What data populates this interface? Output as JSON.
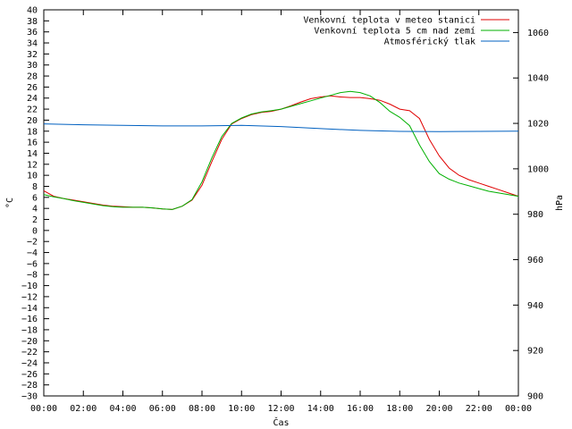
{
  "chart_data": {
    "type": "line",
    "title": "",
    "xlabel": "Čas",
    "ylabel": "°C",
    "y2label": "hPa",
    "xlim": [
      0,
      24
    ],
    "ylim": [
      -30,
      40
    ],
    "y2lim": [
      900,
      1070
    ],
    "x_ticks": [
      "00:00",
      "02:00",
      "04:00",
      "06:00",
      "08:00",
      "10:00",
      "12:00",
      "14:00",
      "16:00",
      "18:00",
      "20:00",
      "22:00",
      "00:00"
    ],
    "y_ticks": [
      40,
      38,
      36,
      34,
      32,
      30,
      28,
      26,
      24,
      22,
      20,
      18,
      16,
      14,
      12,
      10,
      8,
      6,
      4,
      2,
      0,
      -2,
      -4,
      -6,
      -8,
      -10,
      -12,
      -14,
      -16,
      -18,
      -20,
      -22,
      -24,
      -26,
      -28,
      -30
    ],
    "y_tick_labels": [
      "40",
      "38",
      "36",
      "34",
      "32",
      "30",
      "28",
      "26",
      "24",
      "22",
      "20",
      "18",
      "16",
      "14",
      "12",
      "10",
      "8",
      "6",
      "4",
      "2",
      "0",
      "−2",
      "−4",
      "−6",
      "−8",
      "−10",
      "−12",
      "−14",
      "−16",
      "−18",
      "−20",
      "−22",
      "−24",
      "−26",
      "−28",
      "−30"
    ],
    "y2_ticks": [
      1060,
      1040,
      1020,
      1000,
      980,
      960,
      940,
      920,
      900
    ],
    "grid": false,
    "legend_position": "top-right",
    "series": [
      {
        "name": "Venkovní teplota v meteo stanici",
        "color": "#e00000",
        "axis": "left",
        "x": [
          0,
          0.5,
          1,
          1.5,
          2,
          2.5,
          3,
          3.5,
          4,
          4.5,
          5,
          5.5,
          6,
          6.5,
          7,
          7.5,
          8,
          8.5,
          9,
          9.5,
          10,
          10.5,
          11,
          11.5,
          12,
          12.5,
          13,
          13.5,
          14,
          14.5,
          15,
          15.5,
          16,
          16.5,
          17,
          17.5,
          18,
          18.5,
          19,
          19.5,
          20,
          20.5,
          21,
          21.5,
          22,
          22.5,
          23,
          23.5,
          24
        ],
        "values": [
          7.2,
          6.2,
          5.8,
          5.5,
          5.2,
          4.9,
          4.6,
          4.4,
          4.3,
          4.2,
          4.2,
          4.1,
          3.9,
          3.8,
          4.4,
          5.5,
          8.2,
          12.5,
          16.5,
          19.3,
          20.3,
          21.0,
          21.4,
          21.6,
          22.0,
          22.6,
          23.3,
          23.9,
          24.2,
          24.4,
          24.2,
          24.1,
          24.1,
          23.9,
          23.6,
          22.9,
          22.0,
          21.7,
          20.3,
          16.5,
          13.5,
          11.3,
          10.0,
          9.2,
          8.6,
          8.0,
          7.4,
          6.8,
          6.2
        ]
      },
      {
        "name": "Venkovní teplota 5 cm nad zemí",
        "color": "#00b000",
        "axis": "left",
        "x": [
          0,
          0.5,
          1,
          1.5,
          2,
          2.5,
          3,
          3.5,
          4,
          4.5,
          5,
          5.5,
          6,
          6.5,
          7,
          7.5,
          8,
          8.5,
          9,
          9.5,
          10,
          10.5,
          11,
          11.5,
          12,
          12.5,
          13,
          13.5,
          14,
          14.5,
          15,
          15.5,
          16,
          16.5,
          17,
          17.5,
          18,
          18.5,
          19,
          19.5,
          20,
          20.5,
          21,
          21.5,
          22,
          22.5,
          23,
          23.5,
          24
        ],
        "values": [
          6.5,
          6.1,
          5.8,
          5.4,
          5.1,
          4.8,
          4.5,
          4.3,
          4.2,
          4.2,
          4.2,
          4.1,
          3.9,
          3.8,
          4.4,
          5.6,
          8.8,
          13.2,
          17.0,
          19.4,
          20.4,
          21.1,
          21.5,
          21.7,
          22.0,
          22.5,
          23.0,
          23.5,
          24.0,
          24.5,
          25.0,
          25.2,
          25.0,
          24.4,
          23.2,
          21.6,
          20.5,
          19.0,
          15.5,
          12.5,
          10.3,
          9.3,
          8.6,
          8.1,
          7.6,
          7.1,
          6.8,
          6.5,
          6.2
        ]
      },
      {
        "name": "Atmosférický tlak",
        "color": "#0060c0",
        "axis": "right",
        "x": [
          0,
          2,
          4,
          6,
          8,
          10,
          12,
          14,
          16,
          18,
          20,
          22,
          24
        ],
        "values": [
          1019.8,
          1019.4,
          1019.1,
          1018.9,
          1018.9,
          1019.1,
          1018.6,
          1017.7,
          1016.9,
          1016.5,
          1016.4,
          1016.5,
          1016.6
        ]
      }
    ]
  }
}
